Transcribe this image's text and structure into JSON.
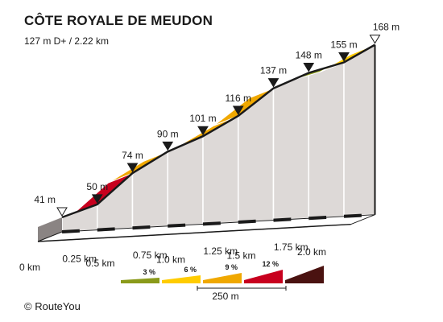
{
  "title": "CÔTE ROYALE DE MEUDON",
  "subtitle": "127 m D+ / 2.22 km",
  "credit": "RouteYou",
  "chart_data": {
    "type": "area",
    "title": "CÔTE ROYALE DE MEUDON",
    "subtitle": "127 m D+ / 2.22 km",
    "xlabel": "",
    "ylabel": "",
    "x_unit": "km",
    "y_unit": "m",
    "x": [
      0,
      0.25,
      0.5,
      0.75,
      1.0,
      1.25,
      1.5,
      1.75,
      2.0,
      2.22
    ],
    "elevation": [
      41,
      50,
      74,
      90,
      101,
      116,
      137,
      148,
      155,
      168
    ],
    "elevation_labels": [
      "41 m",
      "50 m",
      "74 m",
      "90 m",
      "101 m",
      "116 m",
      "137 m",
      "148 m",
      "155 m",
      "168 m"
    ],
    "segment_colors": [
      "#ffcc00",
      "#c8001e",
      "#f0a800",
      "#ffcc00",
      "#f0a800",
      "#f0a800",
      "#ffcc00",
      "#8a9a1a",
      "#ffcc00"
    ],
    "x_tick_labels": [
      "0 km",
      "0.25 km",
      "0.5 km",
      "0.75 km",
      "1.0 km",
      "1.25 km",
      "1.5 km",
      "1.75 km",
      "2.0 km"
    ],
    "grid": false,
    "legend": {
      "placement": "bottom",
      "items": [
        {
          "label": "3 %",
          "color": "#8a9a1a"
        },
        {
          "label": "6 %",
          "color": "#ffcc00"
        },
        {
          "label": "9 %",
          "color": "#f0a800"
        },
        {
          "label": "12 %",
          "color": "#c8001e"
        },
        {
          "label": "",
          "color": "#4a1210"
        }
      ],
      "scale_label": "250 m"
    }
  }
}
